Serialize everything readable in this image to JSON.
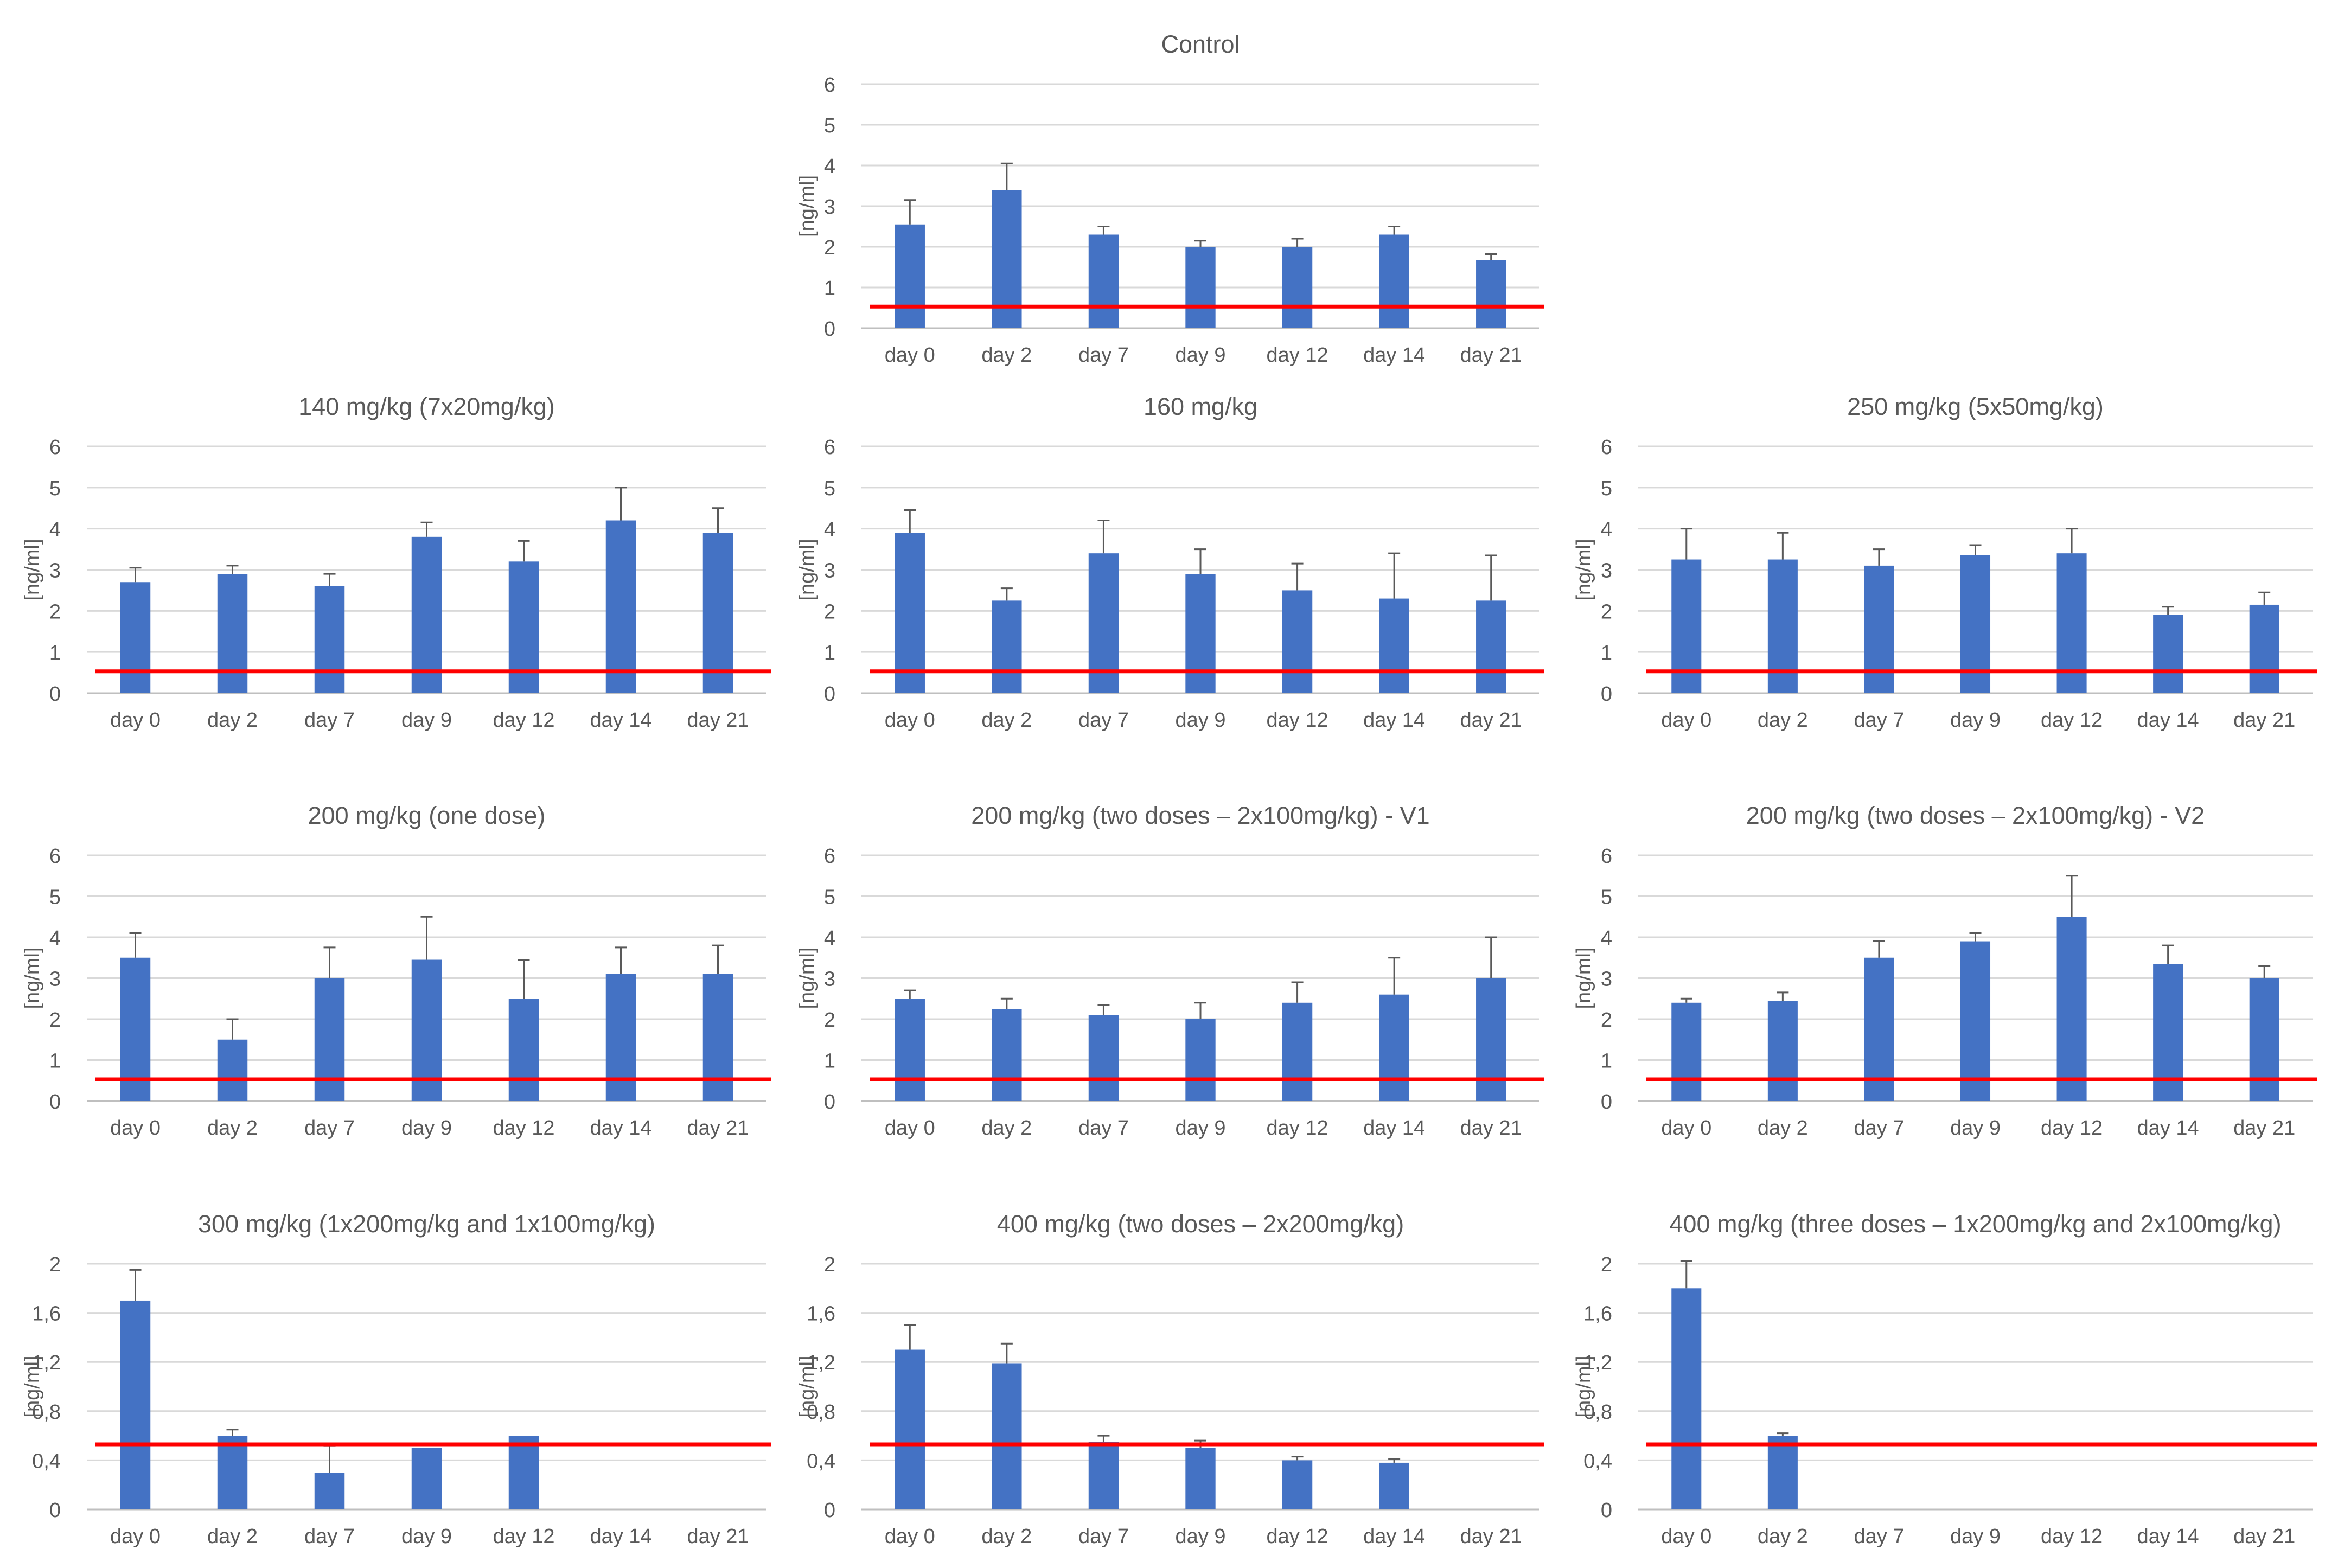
{
  "figure": {
    "colors": {
      "bar": "#4472C4",
      "threshold": "#FF0000",
      "grid": "#D9D9D9",
      "text": "#595959",
      "error": "#595959"
    },
    "threshold_value": 0.53
  },
  "chart_data": [
    {
      "type": "bar",
      "title": "Control",
      "ylabel": "[ng/ml]",
      "xlabel": "",
      "categories": [
        "day 0",
        "day 2",
        "day 7",
        "day 9",
        "day 12",
        "day 14",
        "day 21"
      ],
      "values": [
        2.55,
        3.4,
        2.3,
        2.0,
        2.0,
        2.3,
        1.67
      ],
      "errors": [
        0.6,
        0.65,
        0.2,
        0.15,
        0.2,
        0.2,
        0.15
      ],
      "ylim": [
        0,
        6
      ],
      "yticks": [
        "0",
        "1",
        "2",
        "3",
        "4",
        "5",
        "6"
      ],
      "threshold": 0.53,
      "grid": true
    },
    {
      "type": "bar",
      "title": "140 mg/kg (7x20mg/kg)",
      "ylabel": "[ng/ml]",
      "xlabel": "",
      "categories": [
        "day 0",
        "day 2",
        "day 7",
        "day 9",
        "day 12",
        "day 14",
        "day 21"
      ],
      "values": [
        2.7,
        2.9,
        2.6,
        3.8,
        3.2,
        4.2,
        3.9
      ],
      "errors": [
        0.35,
        0.2,
        0.3,
        0.35,
        0.5,
        0.8,
        0.6
      ],
      "ylim": [
        0,
        6
      ],
      "yticks": [
        "0",
        "1",
        "2",
        "3",
        "4",
        "5",
        "6"
      ],
      "threshold": 0.53,
      "grid": true
    },
    {
      "type": "bar",
      "title": "160 mg/kg",
      "ylabel": "[ng/ml]",
      "xlabel": "",
      "categories": [
        "day 0",
        "day 2",
        "day 7",
        "day 9",
        "day 12",
        "day 14",
        "day 21"
      ],
      "values": [
        3.9,
        2.25,
        3.4,
        2.9,
        2.5,
        2.3,
        2.25
      ],
      "errors": [
        0.55,
        0.3,
        0.8,
        0.6,
        0.65,
        1.1,
        1.1
      ],
      "ylim": [
        0,
        6
      ],
      "yticks": [
        "0",
        "1",
        "2",
        "3",
        "4",
        "5",
        "6"
      ],
      "threshold": 0.53,
      "grid": true
    },
    {
      "type": "bar",
      "title": "250 mg/kg (5x50mg/kg)",
      "ylabel": "[ng/ml]",
      "xlabel": "",
      "categories": [
        "day 0",
        "day 2",
        "day 7",
        "day 9",
        "day 12",
        "day 14",
        "day 21"
      ],
      "values": [
        3.25,
        3.25,
        3.1,
        3.35,
        3.4,
        1.9,
        2.15
      ],
      "errors": [
        0.75,
        0.65,
        0.4,
        0.25,
        0.6,
        0.2,
        0.3
      ],
      "ylim": [
        0,
        6
      ],
      "yticks": [
        "0",
        "1",
        "2",
        "3",
        "4",
        "5",
        "6"
      ],
      "threshold": 0.53,
      "grid": true
    },
    {
      "type": "bar",
      "title": "200 mg/kg (one dose)",
      "ylabel": "[ng/ml]",
      "xlabel": "",
      "categories": [
        "day 0",
        "day 2",
        "day 7",
        "day 9",
        "day 12",
        "day 14",
        "day 21"
      ],
      "values": [
        3.5,
        1.5,
        3.0,
        3.45,
        2.5,
        3.1,
        3.1
      ],
      "errors": [
        0.6,
        0.5,
        0.75,
        1.05,
        0.95,
        0.65,
        0.7
      ],
      "ylim": [
        0,
        6
      ],
      "yticks": [
        "0",
        "1",
        "2",
        "3",
        "4",
        "5",
        "6"
      ],
      "threshold": 0.53,
      "grid": true
    },
    {
      "type": "bar",
      "title": "200 mg/kg (two doses – 2x100mg/kg) - V1",
      "ylabel": "[ng/ml]",
      "xlabel": "",
      "categories": [
        "day 0",
        "day 2",
        "day 7",
        "day 9",
        "day 12",
        "day 14",
        "day 21"
      ],
      "values": [
        2.5,
        2.25,
        2.1,
        2.0,
        2.4,
        2.6,
        3.0
      ],
      "errors": [
        0.2,
        0.25,
        0.25,
        0.4,
        0.5,
        0.9,
        1.0
      ],
      "ylim": [
        0,
        6
      ],
      "yticks": [
        "0",
        "1",
        "2",
        "3",
        "4",
        "5",
        "6"
      ],
      "threshold": 0.53,
      "grid": true
    },
    {
      "type": "bar",
      "title": "200 mg/kg (two doses – 2x100mg/kg) - V2",
      "ylabel": "[ng/ml]",
      "xlabel": "",
      "categories": [
        "day 0",
        "day 2",
        "day 7",
        "day 9",
        "day 12",
        "day 14",
        "day 21"
      ],
      "values": [
        2.4,
        2.45,
        3.5,
        3.9,
        4.5,
        3.35,
        3.0
      ],
      "errors": [
        0.1,
        0.2,
        0.4,
        0.2,
        1.0,
        0.45,
        0.3
      ],
      "ylim": [
        0,
        6
      ],
      "yticks": [
        "0",
        "1",
        "2",
        "3",
        "4",
        "5",
        "6"
      ],
      "threshold": 0.53,
      "grid": true
    },
    {
      "type": "bar",
      "title": "300 mg/kg (1x200mg/kg and 1x100mg/kg)",
      "ylabel": "[ng/ml]",
      "xlabel": "",
      "categories": [
        "day 0",
        "day 2",
        "day 7",
        "day 9",
        "day 12",
        "day 14",
        "day 21"
      ],
      "values": [
        1.7,
        0.6,
        0.3,
        0.5,
        0.6,
        null,
        null
      ],
      "errors": [
        0.25,
        0.05,
        0.22,
        0.0,
        0.0,
        null,
        null
      ],
      "ylim": [
        0,
        2
      ],
      "yticks": [
        "0",
        "0,4",
        "0,8",
        "1,2",
        "1,6",
        "2"
      ],
      "threshold": 0.53,
      "grid": true
    },
    {
      "type": "bar",
      "title": "400 mg/kg (two doses – 2x200mg/kg)",
      "ylabel": "[ng/ml]",
      "xlabel": "",
      "categories": [
        "day 0",
        "day 2",
        "day 7",
        "day 9",
        "day 12",
        "day 14",
        "day 21"
      ],
      "values": [
        1.3,
        1.19,
        0.55,
        0.5,
        0.4,
        0.38,
        null
      ],
      "errors": [
        0.2,
        0.16,
        0.05,
        0.06,
        0.03,
        0.03,
        null
      ],
      "ylim": [
        0,
        2
      ],
      "yticks": [
        "0",
        "0,4",
        "0,8",
        "1,2",
        "1,6",
        "2"
      ],
      "threshold": 0.53,
      "grid": true
    },
    {
      "type": "bar",
      "title": "400 mg/kg (three doses – 1x200mg/kg and 2x100mg/kg)",
      "ylabel": "[ng/ml]",
      "xlabel": "",
      "categories": [
        "day 0",
        "day 2",
        "day 7",
        "day 9",
        "day 12",
        "day 14",
        "day 21"
      ],
      "values": [
        1.8,
        0.6,
        null,
        null,
        null,
        null,
        null
      ],
      "errors": [
        0.22,
        0.02,
        null,
        null,
        null,
        null,
        null
      ],
      "ylim": [
        0,
        2
      ],
      "yticks": [
        "0",
        "0,4",
        "0,8",
        "1,2",
        "1,6",
        "2"
      ],
      "threshold": 0.53,
      "grid": true
    }
  ]
}
